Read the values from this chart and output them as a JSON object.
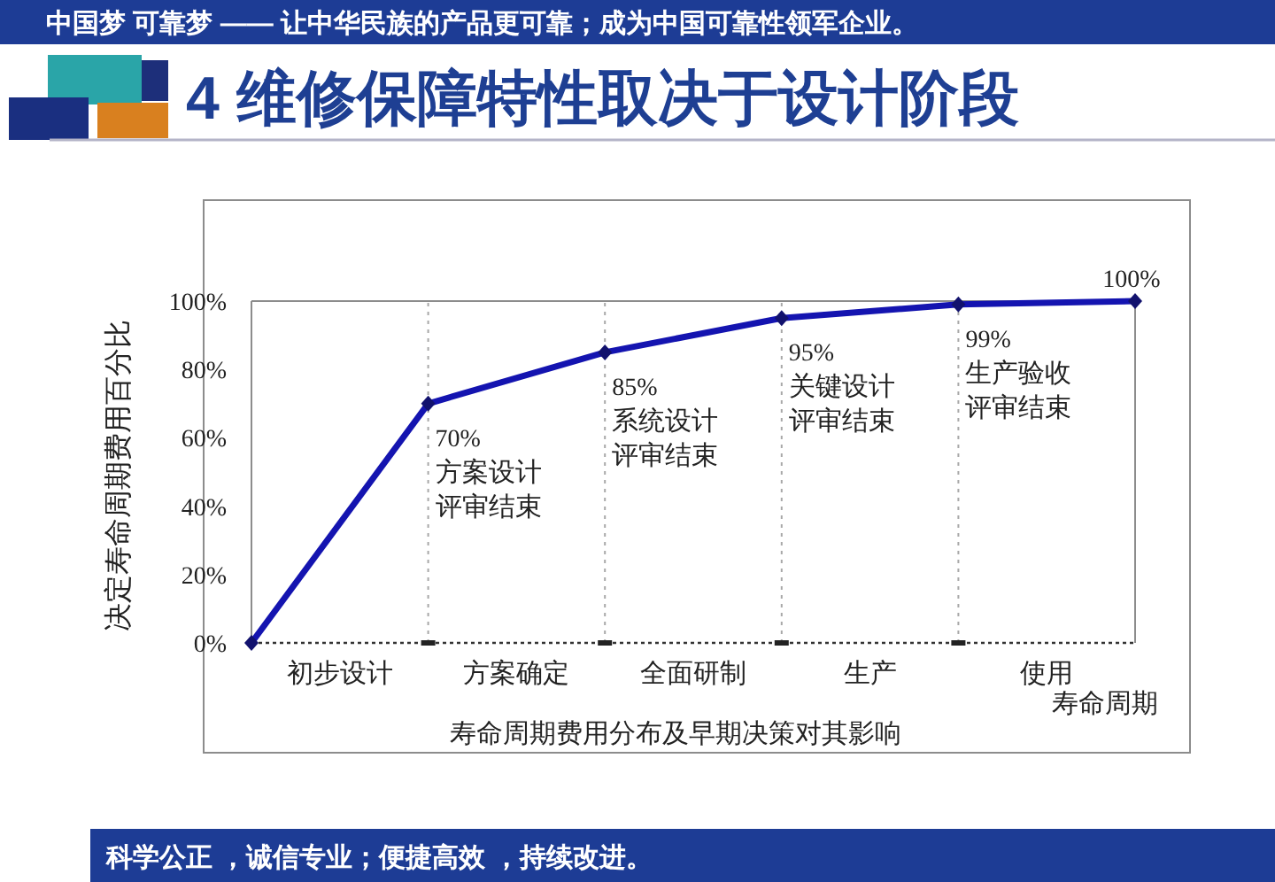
{
  "chart_data": {
    "type": "line",
    "title": "4 维修保障特性取决于设计阶段",
    "subtitle": "中国梦  可靠梦 —— 让中华民族的产品更可靠；成为中国可靠性领军企业。",
    "xlabel": "寿命周期",
    "ylabel": "决定寿命周期费用百分比",
    "categories": [
      null,
      null,
      null,
      null,
      null,
      null
    ],
    "series": [
      {
        "color": "#1414b0",
        "values": [
          0,
          70,
          85,
          95,
          99,
          100
        ],
        "value_labels": [
          null,
          "70%",
          "85%",
          "95%",
          "99%",
          "100%"
        ]
      }
    ],
    "ylim": [
      0,
      100
    ],
    "yticks": [
      {
        "value": 0,
        "label": "0%"
      },
      {
        "value": 20,
        "label": "20%"
      },
      {
        "value": 40,
        "label": "40%"
      },
      {
        "value": 60,
        "label": "60%"
      },
      {
        "value": 80,
        "label": "80%"
      },
      {
        "value": 100,
        "label": "100%"
      }
    ],
    "annotations": [
      "方案设计评审结束",
      "系统设计评审结束",
      "关键设计评审结束",
      "生产验收评审结束",
      "初步设计",
      "方案确定",
      "全面研制",
      "生产",
      "使用",
      "寿命周期费用分布及早期决策对其影响",
      "科学公正 ，诚信专业；便捷高效 ，持续改进。"
    ],
    "marker": "diamond",
    "line_style": "solid",
    "grid": "x"
  }
}
